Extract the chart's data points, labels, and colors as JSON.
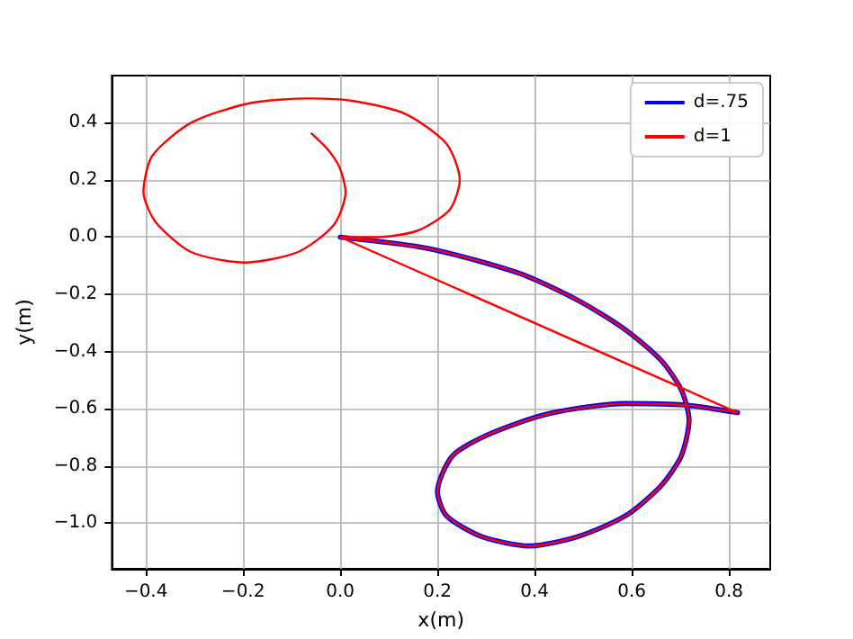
{
  "chart_data": {
    "type": "line",
    "xlabel": "x(m)",
    "ylabel": "y(m)",
    "xlim": [
      -0.47,
      0.885
    ],
    "ylim": [
      -1.16,
      0.565
    ],
    "xticks": [
      {
        "value": -0.4,
        "label": "−0.4"
      },
      {
        "value": -0.2,
        "label": "−0.2"
      },
      {
        "value": 0,
        "label": "0.0"
      },
      {
        "value": 0.2,
        "label": "0.2"
      },
      {
        "value": 0.4,
        "label": "0.4"
      },
      {
        "value": 0.6,
        "label": "0.6"
      },
      {
        "value": 0.8,
        "label": "0.8"
      }
    ],
    "yticks": [
      {
        "value": -1.0,
        "label": "−1.0"
      },
      {
        "value": -0.8,
        "label": "−0.8"
      },
      {
        "value": -0.6,
        "label": "−0.6"
      },
      {
        "value": -0.4,
        "label": "−0.4"
      },
      {
        "value": -0.2,
        "label": "−0.2"
      },
      {
        "value": 0,
        "label": "0.0"
      },
      {
        "value": 0.2,
        "label": "0.2"
      },
      {
        "value": 0.4,
        "label": "0.4"
      }
    ],
    "grid": true,
    "legend": "top right",
    "marker": "none",
    "line_style": "solid",
    "series": [
      {
        "name": "d=.75",
        "color": "#0000ff",
        "x": [
          0,
          0.182,
          0.366,
          0.488,
          0.587,
          0.66,
          0.702,
          0.718,
          0.702,
          0.66,
          0.587,
          0.488,
          0.39,
          0.292,
          0.219,
          0.2,
          0.231,
          0.305,
          0.428,
          0.587,
          0.708,
          0.818
        ],
        "values": [
          0,
          -0.04,
          -0.125,
          -0.22,
          -0.324,
          -0.43,
          -0.534,
          -0.64,
          -0.765,
          -0.87,
          -0.975,
          -1.048,
          -1.08,
          -1.048,
          -0.975,
          -0.89,
          -0.765,
          -0.69,
          -0.618,
          -0.582,
          -0.587,
          -0.614
        ]
      },
      {
        "name": "d=1",
        "color": "#ff0000",
        "x": [
          0,
          0.182,
          0.366,
          0.488,
          0.587,
          0.66,
          0.702,
          0.718,
          0.702,
          0.66,
          0.587,
          0.488,
          0.39,
          0.292,
          0.219,
          0.2,
          0.231,
          0.305,
          0.428,
          0.587,
          0.708,
          0.818,
          0,
          0.072,
          0.158,
          0.225,
          0.246,
          0.219,
          0.134,
          0.024,
          -0.062,
          -0.185,
          -0.307,
          -0.387,
          -0.405,
          -0.38,
          -0.307,
          -0.197,
          -0.087,
          -0.013,
          0.011,
          -0.001,
          -0.025,
          -0.059
        ],
        "values": [
          0,
          -0.04,
          -0.125,
          -0.22,
          -0.324,
          -0.43,
          -0.534,
          -0.64,
          -0.765,
          -0.87,
          -0.975,
          -1.048,
          -1.08,
          -1.048,
          -0.975,
          -0.89,
          -0.765,
          -0.69,
          -0.618,
          -0.582,
          -0.587,
          -0.614,
          0,
          0,
          0.022,
          0.095,
          0.2,
          0.326,
          0.431,
          0.477,
          0.485,
          0.469,
          0.4,
          0.284,
          0.158,
          0.053,
          -0.052,
          -0.089,
          -0.052,
          0.043,
          0.158,
          0.242,
          0.305,
          0.362
        ]
      }
    ]
  }
}
